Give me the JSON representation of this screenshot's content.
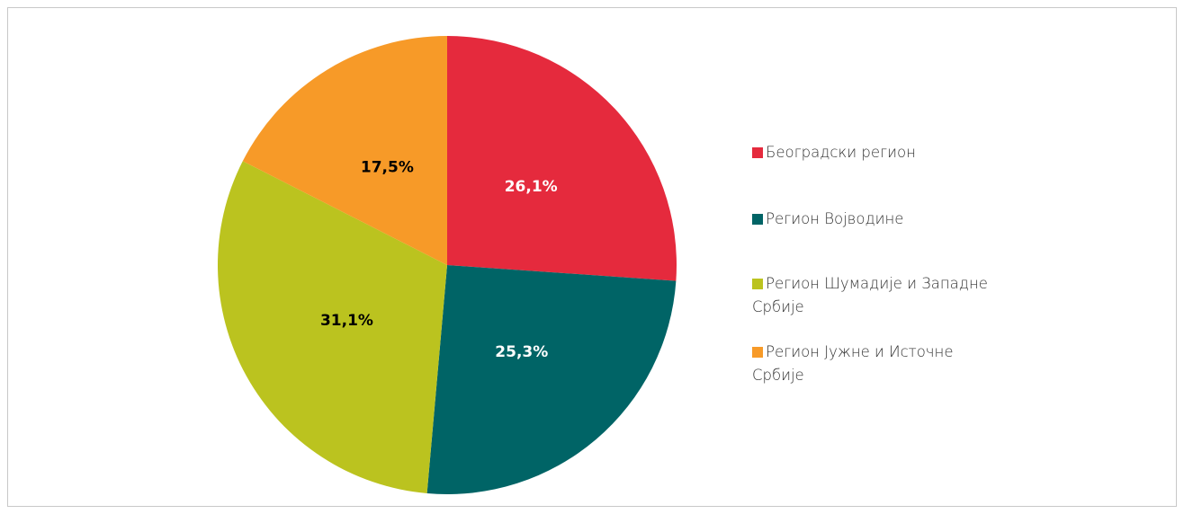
{
  "chart_data": {
    "type": "pie",
    "categories": [
      "Београдски регион",
      "Регион Војводине",
      "Регион Шумадије и Западне Србије",
      "Регион Јужне и Источне Србије"
    ],
    "values": [
      26.1,
      25.3,
      31.1,
      17.5
    ],
    "value_labels": [
      "26,1%",
      "25,3%",
      "31,1%",
      "17,5%"
    ],
    "colors": [
      "#e52a3d",
      "#006466",
      "#bbc31f",
      "#f79a28"
    ],
    "label_colors": [
      "#ffffff",
      "#ffffff",
      "#000000",
      "#000000"
    ],
    "legend": "right"
  }
}
